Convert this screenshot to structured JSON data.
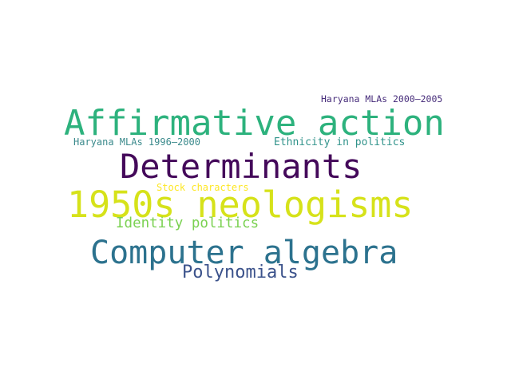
{
  "word_cloud": {
    "background_color": "#ffffff",
    "words": [
      {
        "id": "haryana-2000-2005",
        "text": "Haryana MLAs 2000–2005",
        "color": "#472d7b"
      },
      {
        "id": "affirmative-action",
        "text": "Affirmative action",
        "color": "#2db27d"
      },
      {
        "id": "haryana-1996-2000",
        "text": "Haryana MLAs 1996–2000",
        "color": "#3b8a8c"
      },
      {
        "id": "ethnicity-politics",
        "text": "Ethnicity in politics",
        "color": "#31938b"
      },
      {
        "id": "determinants",
        "text": "Determinants",
        "color": "#44095a"
      },
      {
        "id": "stock-characters",
        "text": "Stock characters",
        "color": "#fde725"
      },
      {
        "id": "1950s-neologisms",
        "text": "1950s neologisms",
        "color": "#d6e21a"
      },
      {
        "id": "identity-politics",
        "text": "Identity politics",
        "color": "#7ad151"
      },
      {
        "id": "computer-algebra",
        "text": "Computer algebra",
        "color": "#2c728e"
      },
      {
        "id": "polynomials",
        "text": "Polynomials",
        "color": "#3b528b"
      }
    ]
  }
}
